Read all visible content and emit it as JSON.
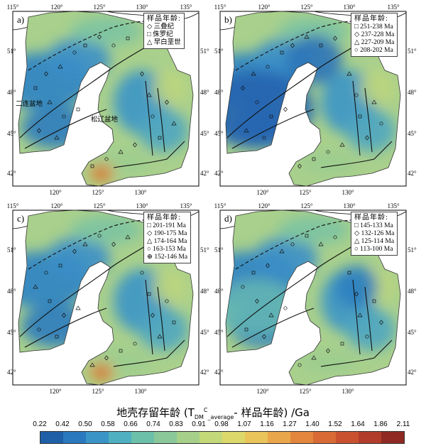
{
  "panels": [
    {
      "id": "a",
      "label": "a)",
      "legend_title": "样品年龄:",
      "legend_items": [
        {
          "symbol": "◇",
          "text": "三叠纪"
        },
        {
          "symbol": "□",
          "text": "侏罗纪"
        },
        {
          "symbol": "△",
          "text": "早白垩世"
        }
      ],
      "basins": [
        "二连盆地",
        "松辽盆地"
      ]
    },
    {
      "id": "b",
      "label": "b)",
      "legend_title": "样品年龄:",
      "legend_items": [
        {
          "symbol": "□",
          "text": "251-238 Ma"
        },
        {
          "symbol": "◇",
          "text": "237-228 Ma"
        },
        {
          "symbol": "△",
          "text": "227-209 Ma"
        },
        {
          "symbol": "○",
          "text": "208-202 Ma"
        }
      ],
      "basins": []
    },
    {
      "id": "c",
      "label": "c)",
      "legend_title": "样品年龄:",
      "legend_items": [
        {
          "symbol": "□",
          "text": "201-191 Ma"
        },
        {
          "symbol": "◇",
          "text": "190-175 Ma"
        },
        {
          "symbol": "△",
          "text": "174-164 Ma"
        },
        {
          "symbol": "○",
          "text": "163-153 Ma"
        },
        {
          "symbol": "⊕",
          "text": "152-146 Ma"
        }
      ],
      "basins": []
    },
    {
      "id": "d",
      "label": "d)",
      "legend_title": "样品年龄:",
      "legend_items": [
        {
          "symbol": "□",
          "text": "145-133 Ma"
        },
        {
          "symbol": "◇",
          "text": "132-126 Ma"
        },
        {
          "symbol": "△",
          "text": "125-114 Ma"
        },
        {
          "symbol": "○",
          "text": "113-100 Ma"
        }
      ],
      "basins": []
    }
  ],
  "axes": {
    "lon_ticks": [
      "115°",
      "120°",
      "125°",
      "130°",
      "135°"
    ],
    "lat_ticks": [
      "51°",
      "48°",
      "45°",
      "42°"
    ]
  },
  "colorbar": {
    "title_main": "地壳存留年龄 (T",
    "title_sub1": "DM",
    "title_sup": "C",
    "title_sub2": "_average",
    "title_tail": "- 样品年龄) /Ga",
    "ticks": [
      "0.22",
      "0.42",
      "0.50",
      "0.58",
      "0.66",
      "0.74",
      "0.83",
      "0.91",
      "0.98",
      "1.07",
      "1.16",
      "1.27",
      "1.40",
      "1.52",
      "1.64",
      "1.86",
      "2.11"
    ],
    "colors": [
      "#1f5fa8",
      "#2a78bd",
      "#3a95c6",
      "#4fb0c0",
      "#6cc0aa",
      "#8ac89a",
      "#a6d08a",
      "#c3d879",
      "#dcd86a",
      "#e8c45a",
      "#eaa64a",
      "#e3863d",
      "#d86a35",
      "#c9512f",
      "#b23c2a",
      "#8f2a22"
    ]
  }
}
